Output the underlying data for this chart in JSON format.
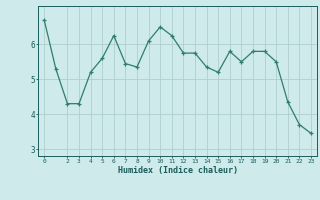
{
  "x": [
    0,
    1,
    2,
    3,
    4,
    5,
    6,
    7,
    8,
    9,
    10,
    11,
    12,
    13,
    14,
    15,
    16,
    17,
    18,
    19,
    20,
    21,
    22,
    23
  ],
  "y": [
    6.7,
    5.3,
    4.3,
    4.3,
    5.2,
    5.6,
    6.25,
    5.45,
    5.35,
    6.1,
    6.5,
    6.25,
    5.75,
    5.75,
    5.35,
    5.2,
    5.8,
    5.5,
    5.8,
    5.8,
    5.5,
    4.35,
    3.7,
    3.45
  ],
  "xlabel": "Humidex (Indice chaleur)",
  "line_color": "#2e7d6e",
  "bg_color": "#ceeaea",
  "grid_color": "#aecece",
  "tick_label_color": "#1a5c5c",
  "axis_color": "#1a5c5c",
  "ylim": [
    2.8,
    7.1
  ],
  "xlim": [
    -0.5,
    23.5
  ],
  "yticks": [
    3,
    4,
    5,
    6
  ],
  "xticks": [
    0,
    2,
    3,
    4,
    5,
    6,
    7,
    8,
    9,
    10,
    11,
    12,
    13,
    14,
    15,
    16,
    17,
    18,
    19,
    20,
    21,
    22,
    23
  ]
}
